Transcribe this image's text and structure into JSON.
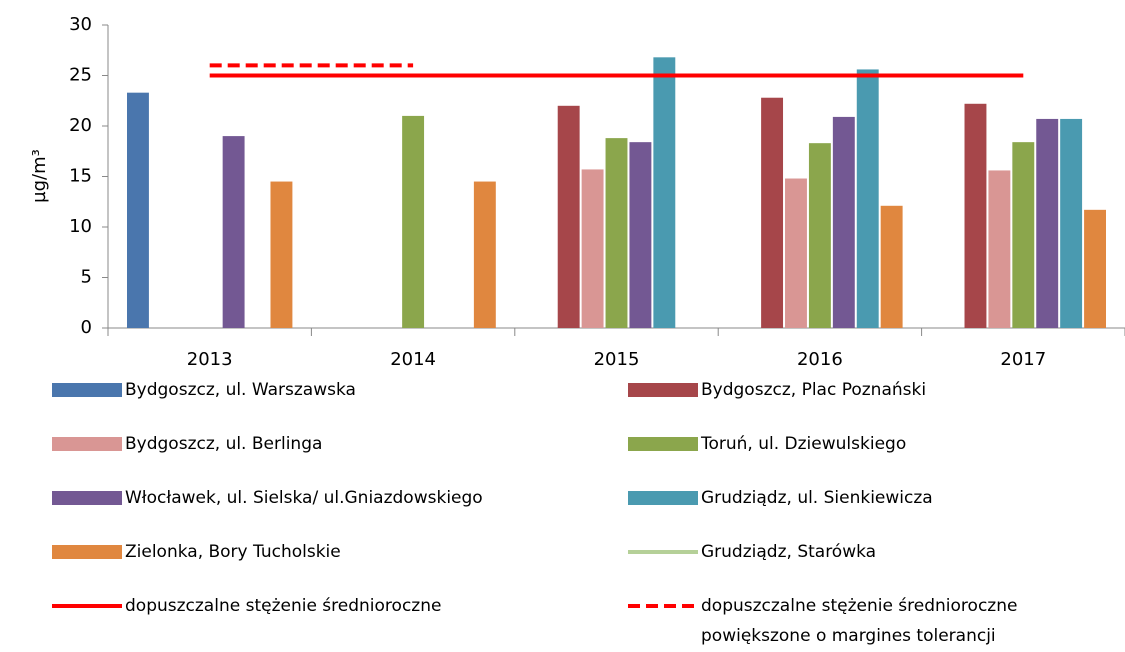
{
  "chart_data": {
    "type": "bar",
    "y_label": "µg/m³",
    "categories": [
      "2013",
      "2014",
      "2015",
      "2016",
      "2017"
    ],
    "ylim": [
      0,
      30
    ],
    "yticks": [
      0,
      5,
      10,
      15,
      20,
      25,
      30
    ],
    "series": [
      {
        "name": "Bydgoszcz, ul. Warszawska",
        "type": "bar",
        "color": "#4a76ad",
        "values": [
          23.3,
          null,
          null,
          null,
          null
        ]
      },
      {
        "name": "Bydgoszcz, Plac Poznański",
        "type": "bar",
        "color": "#a6464a",
        "values": [
          null,
          null,
          22.0,
          22.8,
          22.2
        ]
      },
      {
        "name": "Bydgoszcz, ul. Berlinga",
        "type": "bar",
        "color": "#d99694",
        "values": [
          null,
          null,
          15.7,
          14.8,
          15.6
        ]
      },
      {
        "name": "Toruń, ul. Dziewulskiego",
        "type": "bar",
        "color": "#8ba64c",
        "values": [
          null,
          21.0,
          18.8,
          18.3,
          18.4
        ]
      },
      {
        "name": "Włocławek, ul. Sielska/ ul.Gniazdowskiego",
        "type": "bar",
        "color": "#735893",
        "values": [
          19.0,
          null,
          18.4,
          20.9,
          20.7
        ]
      },
      {
        "name": "Grudziądz, ul. Sienkiewicza",
        "type": "bar",
        "color": "#4a9ab0",
        "values": [
          null,
          null,
          26.8,
          25.6,
          20.7
        ]
      },
      {
        "name": "Zielonka, Bory Tucholskie",
        "type": "bar",
        "color": "#e0873f",
        "values": [
          14.5,
          14.5,
          null,
          12.1,
          11.7
        ]
      },
      {
        "name": "Grudziądz, Starówka",
        "type": "line",
        "color": "#b5d098",
        "values": [
          null,
          null,
          null,
          null,
          null
        ]
      },
      {
        "name": "dopuszczalne stężenie średnioroczne",
        "type": "line",
        "color": "#ff0000",
        "values": [
          25,
          25,
          25,
          25,
          25
        ]
      },
      {
        "name": "dopuszczalne stężenie średnioroczne\npowiększone o margines tolerancji",
        "type": "line",
        "dashed": true,
        "color": "#ff0000",
        "values": [
          26,
          26,
          null,
          null,
          null
        ]
      }
    ]
  }
}
